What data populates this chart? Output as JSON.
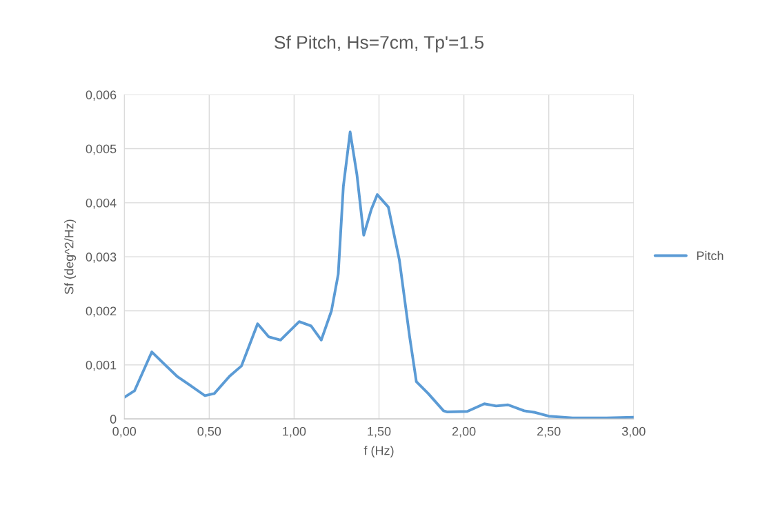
{
  "chart_data": {
    "type": "line",
    "title": "Sf Pitch, Hs=7cm, Tp'=1.5",
    "xlabel": "f (Hz)",
    "ylabel": "Sf (deg^2/Hz)",
    "x": [
      0,
      0.06,
      0.162,
      0.23,
      0.31,
      0.38,
      0.475,
      0.53,
      0.62,
      0.69,
      0.785,
      0.85,
      0.92,
      1.03,
      1.1,
      1.16,
      1.22,
      1.26,
      1.29,
      1.33,
      1.37,
      1.41,
      1.455,
      1.49,
      1.555,
      1.62,
      1.68,
      1.72,
      1.79,
      1.88,
      1.9,
      2.02,
      2.12,
      2.19,
      2.26,
      2.355,
      2.42,
      2.5,
      2.64,
      2.84,
      3.0
    ],
    "series": [
      {
        "name": "Pitch",
        "color": "#5b9bd5",
        "values": [
          0.0004,
          0.00052,
          0.00124,
          0.00103,
          0.00079,
          0.00064,
          0.00043,
          0.00047,
          0.00079,
          0.00098,
          0.00176,
          0.00152,
          0.00146,
          0.0018,
          0.00172,
          0.00146,
          0.002,
          0.00268,
          0.0043,
          0.00531,
          0.00452,
          0.0034,
          0.00388,
          0.00415,
          0.00392,
          0.00294,
          0.00153,
          0.00069,
          0.00047,
          0.00015,
          0.00013,
          0.00014,
          0.00028,
          0.00024,
          0.00026,
          0.00015,
          0.00012,
          5e-05,
          2e-05,
          2e-05,
          3e-05
        ]
      }
    ],
    "xlim": [
      0,
      3
    ],
    "xticks": [
      {
        "value": 0,
        "label": "0,00"
      },
      {
        "value": 0.5,
        "label": "0,50"
      },
      {
        "value": 1,
        "label": "1,00"
      },
      {
        "value": 1.5,
        "label": "1,50"
      },
      {
        "value": 2,
        "label": "2,00"
      },
      {
        "value": 2.5,
        "label": "2,50"
      },
      {
        "value": 3,
        "label": "3,00"
      }
    ],
    "ylim": [
      0,
      0.006
    ],
    "yticks": [
      0,
      {
        "value": 0.001,
        "label": "0,001"
      },
      {
        "value": 0.002,
        "label": "0,002"
      },
      {
        "value": 0.003,
        "label": "0,003"
      },
      {
        "value": 0.004,
        "label": "0,004"
      },
      {
        "value": 0.005,
        "label": "0,005"
      },
      {
        "value": 0.006,
        "label": "0,006"
      }
    ],
    "grid": true,
    "legend": "right",
    "marker": "none",
    "line_style": "solid"
  }
}
